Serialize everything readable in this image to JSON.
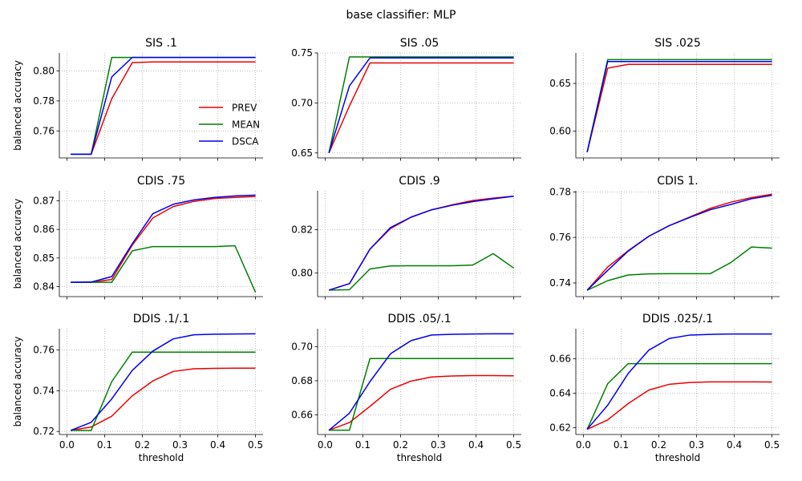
{
  "figure": {
    "suptitle": "base classifier: MLP"
  },
  "colors": {
    "PREV": "#ee0000",
    "MEAN": "#008000",
    "DSCA": "#0000ee",
    "grid": "#b0b0b0"
  },
  "legend": {
    "entries": [
      "PREV",
      "MEAN",
      "DSCA"
    ],
    "placement": "center-right of first panel"
  },
  "chart_data": [
    {
      "type": "line",
      "title": "SIS .1",
      "xlabel": "",
      "ylabel": "balanced accuracy",
      "grid": true,
      "xlim": [
        -0.02,
        0.52
      ],
      "ylim": [
        0.742,
        0.812
      ],
      "yticks": [
        0.76,
        0.78,
        0.8
      ],
      "yticklabels": [
        "0.76",
        "0.78",
        "0.80"
      ],
      "xticks": [],
      "xticklabels": [],
      "x": [
        0.01,
        0.0644,
        0.1189,
        0.1733,
        0.2278,
        0.2822,
        0.3367,
        0.3911,
        0.4456,
        0.5
      ],
      "series": [
        {
          "name": "PREV",
          "values": [
            0.7445,
            0.7445,
            0.7815,
            0.8055,
            0.806,
            0.806,
            0.806,
            0.806,
            0.806,
            0.806
          ]
        },
        {
          "name": "MEAN",
          "values": [
            0.7445,
            0.7445,
            0.809,
            0.809,
            0.809,
            0.809,
            0.809,
            0.809,
            0.809,
            0.809
          ]
        },
        {
          "name": "DSCA",
          "values": [
            0.7445,
            0.7445,
            0.796,
            0.809,
            0.809,
            0.809,
            0.809,
            0.809,
            0.809,
            0.809
          ]
        }
      ]
    },
    {
      "type": "line",
      "title": "SIS .05",
      "xlabel": "",
      "ylabel": "",
      "grid": true,
      "xlim": [
        -0.02,
        0.52
      ],
      "ylim": [
        0.645,
        0.75
      ],
      "yticks": [
        0.65,
        0.7,
        0.75
      ],
      "yticklabels": [
        "0.65",
        "0.70",
        "0.75"
      ],
      "xticks": [],
      "xticklabels": [],
      "x": [
        0.01,
        0.0644,
        0.1189,
        0.1733,
        0.2278,
        0.2822,
        0.3367,
        0.3911,
        0.4456,
        0.5
      ],
      "series": [
        {
          "name": "PREV",
          "values": [
            0.65,
            0.697,
            0.74,
            0.74,
            0.74,
            0.74,
            0.74,
            0.74,
            0.74,
            0.74
          ]
        },
        {
          "name": "MEAN",
          "values": [
            0.65,
            0.746,
            0.746,
            0.746,
            0.746,
            0.746,
            0.746,
            0.746,
            0.746,
            0.746
          ]
        },
        {
          "name": "DSCA",
          "values": [
            0.65,
            0.717,
            0.745,
            0.745,
            0.745,
            0.745,
            0.745,
            0.745,
            0.745,
            0.745
          ]
        }
      ]
    },
    {
      "type": "line",
      "title": "SIS .025",
      "xlabel": "",
      "ylabel": "",
      "grid": true,
      "xlim": [
        -0.02,
        0.52
      ],
      "ylim": [
        0.572,
        0.682
      ],
      "yticks": [
        0.6,
        0.65
      ],
      "yticklabels": [
        "0.60",
        "0.65"
      ],
      "xticks": [],
      "xticklabels": [],
      "x": [
        0.01,
        0.0644,
        0.1189,
        0.1733,
        0.2278,
        0.2822,
        0.3367,
        0.3911,
        0.4456,
        0.5
      ],
      "series": [
        {
          "name": "PREV",
          "values": [
            0.578,
            0.666,
            0.67,
            0.67,
            0.67,
            0.67,
            0.67,
            0.67,
            0.67,
            0.67
          ]
        },
        {
          "name": "MEAN",
          "values": [
            0.578,
            0.675,
            0.675,
            0.675,
            0.675,
            0.675,
            0.675,
            0.675,
            0.675,
            0.675
          ]
        },
        {
          "name": "DSCA",
          "values": [
            0.578,
            0.673,
            0.673,
            0.673,
            0.673,
            0.673,
            0.673,
            0.673,
            0.673,
            0.673
          ]
        }
      ]
    },
    {
      "type": "line",
      "title": "CDIS .75",
      "xlabel": "",
      "ylabel": "balanced accuracy",
      "grid": true,
      "xlim": [
        -0.02,
        0.52
      ],
      "ylim": [
        0.8365,
        0.8735
      ],
      "yticks": [
        0.84,
        0.85,
        0.86,
        0.87
      ],
      "yticklabels": [
        "0.84",
        "0.85",
        "0.86",
        "0.87"
      ],
      "xticks": [],
      "xticklabels": [],
      "x": [
        0.01,
        0.0644,
        0.1189,
        0.1733,
        0.2278,
        0.2822,
        0.3367,
        0.3911,
        0.4456,
        0.5
      ],
      "series": [
        {
          "name": "PREV",
          "values": [
            0.8415,
            0.8415,
            0.8425,
            0.8545,
            0.864,
            0.868,
            0.8698,
            0.8708,
            0.8712,
            0.8715
          ]
        },
        {
          "name": "MEAN",
          "values": [
            0.8415,
            0.8415,
            0.8415,
            0.8525,
            0.854,
            0.854,
            0.854,
            0.854,
            0.8543,
            0.838
          ]
        },
        {
          "name": "DSCA",
          "values": [
            0.8415,
            0.8416,
            0.8435,
            0.855,
            0.8655,
            0.8688,
            0.8703,
            0.8712,
            0.8717,
            0.872
          ]
        }
      ]
    },
    {
      "type": "line",
      "title": "CDIS .9",
      "xlabel": "",
      "ylabel": "",
      "grid": true,
      "xlim": [
        -0.02,
        0.52
      ],
      "ylim": [
        0.789,
        0.838
      ],
      "yticks": [
        0.8,
        0.82
      ],
      "yticklabels": [
        "0.80",
        "0.82"
      ],
      "xticks": [],
      "xticklabels": [],
      "x": [
        0.01,
        0.0644,
        0.1189,
        0.1733,
        0.2278,
        0.2822,
        0.3367,
        0.3911,
        0.4456,
        0.5
      ],
      "series": [
        {
          "name": "PREV",
          "values": [
            0.792,
            0.795,
            0.811,
            0.8205,
            0.8258,
            0.8292,
            0.8315,
            0.8335,
            0.8346,
            0.8355
          ]
        },
        {
          "name": "MEAN",
          "values": [
            0.792,
            0.7922,
            0.8018,
            0.8032,
            0.8033,
            0.8033,
            0.8033,
            0.8036,
            0.8089,
            0.8022
          ]
        },
        {
          "name": "DSCA",
          "values": [
            0.792,
            0.795,
            0.811,
            0.821,
            0.8258,
            0.8292,
            0.8313,
            0.833,
            0.8343,
            0.8355
          ]
        }
      ]
    },
    {
      "type": "line",
      "title": "CDIS 1.",
      "xlabel": "",
      "ylabel": "",
      "grid": true,
      "xlim": [
        -0.02,
        0.52
      ],
      "ylim": [
        0.734,
        0.7805
      ],
      "yticks": [
        0.74,
        0.76,
        0.78
      ],
      "yticklabels": [
        "0.74",
        "0.76",
        "0.78"
      ],
      "xticks": [],
      "xticklabels": [],
      "x": [
        0.01,
        0.0644,
        0.1189,
        0.1733,
        0.2278,
        0.2822,
        0.3367,
        0.3911,
        0.4456,
        0.5
      ],
      "series": [
        {
          "name": "PREV",
          "values": [
            0.7368,
            0.747,
            0.7542,
            0.7605,
            0.7652,
            0.769,
            0.7728,
            0.7755,
            0.7775,
            0.779
          ]
        },
        {
          "name": "MEAN",
          "values": [
            0.7368,
            0.741,
            0.7435,
            0.744,
            0.7441,
            0.7441,
            0.7441,
            0.749,
            0.7558,
            0.7553
          ]
        },
        {
          "name": "DSCA",
          "values": [
            0.7368,
            0.7455,
            0.754,
            0.7605,
            0.7652,
            0.7688,
            0.7722,
            0.7745,
            0.777,
            0.7785
          ]
        }
      ]
    },
    {
      "type": "line",
      "title": "DDIS .1/.1",
      "xlabel": "threshold",
      "ylabel": "balanced accuracy",
      "grid": true,
      "xlim": [
        -0.02,
        0.52
      ],
      "ylim": [
        0.7185,
        0.7705
      ],
      "yticks": [
        0.72,
        0.74,
        0.76
      ],
      "yticklabels": [
        "0.72",
        "0.74",
        "0.76"
      ],
      "xticks": [
        0.0,
        0.1,
        0.2,
        0.3,
        0.4,
        0.5
      ],
      "xticklabels": [
        "0.0",
        "0.1",
        "0.2",
        "0.3",
        "0.4",
        "0.5"
      ],
      "x": [
        0.01,
        0.0644,
        0.1189,
        0.1733,
        0.2278,
        0.2822,
        0.3367,
        0.3911,
        0.4456,
        0.5
      ],
      "series": [
        {
          "name": "PREV",
          "values": [
            0.7205,
            0.7222,
            0.7275,
            0.7375,
            0.7448,
            0.7495,
            0.7508,
            0.751,
            0.7511,
            0.7511
          ]
        },
        {
          "name": "MEAN",
          "values": [
            0.7205,
            0.7205,
            0.7445,
            0.759,
            0.759,
            0.759,
            0.759,
            0.759,
            0.759,
            0.759
          ]
        },
        {
          "name": "DSCA",
          "values": [
            0.7205,
            0.7245,
            0.736,
            0.75,
            0.7595,
            0.7655,
            0.7675,
            0.7678,
            0.7679,
            0.768
          ]
        }
      ]
    },
    {
      "type": "line",
      "title": "DDIS .05/.1",
      "xlabel": "threshold",
      "ylabel": "",
      "grid": true,
      "xlim": [
        -0.02,
        0.52
      ],
      "ylim": [
        0.6485,
        0.7105
      ],
      "yticks": [
        0.66,
        0.68,
        0.7
      ],
      "yticklabels": [
        "0.66",
        "0.68",
        "0.70"
      ],
      "xticks": [
        0.0,
        0.1,
        0.2,
        0.3,
        0.4,
        0.5
      ],
      "xticklabels": [
        "0.0",
        "0.1",
        "0.2",
        "0.3",
        "0.4",
        "0.5"
      ],
      "x": [
        0.01,
        0.0644,
        0.1189,
        0.1733,
        0.2278,
        0.2822,
        0.3367,
        0.3911,
        0.4456,
        0.5
      ],
      "series": [
        {
          "name": "PREV",
          "values": [
            0.651,
            0.6555,
            0.665,
            0.675,
            0.6798,
            0.6822,
            0.6828,
            0.683,
            0.683,
            0.6829
          ]
        },
        {
          "name": "MEAN",
          "values": [
            0.651,
            0.651,
            0.693,
            0.693,
            0.693,
            0.693,
            0.693,
            0.693,
            0.693,
            0.693
          ]
        },
        {
          "name": "DSCA",
          "values": [
            0.651,
            0.661,
            0.6795,
            0.6958,
            0.7035,
            0.7068,
            0.7072,
            0.7074,
            0.7075,
            0.7075
          ]
        }
      ]
    },
    {
      "type": "line",
      "title": "DDIS .025/.1",
      "xlabel": "threshold",
      "ylabel": "",
      "grid": true,
      "xlim": [
        -0.02,
        0.52
      ],
      "ylim": [
        0.616,
        0.6775
      ],
      "yticks": [
        0.62,
        0.64,
        0.66
      ],
      "yticklabels": [
        "0.62",
        "0.64",
        "0.66"
      ],
      "xticks": [
        0.0,
        0.1,
        0.2,
        0.3,
        0.4,
        0.5
      ],
      "xticklabels": [
        "0.0",
        "0.1",
        "0.2",
        "0.3",
        "0.4",
        "0.5"
      ],
      "x": [
        0.01,
        0.0644,
        0.1189,
        0.1733,
        0.2278,
        0.2822,
        0.3367,
        0.3911,
        0.4456,
        0.5
      ],
      "series": [
        {
          "name": "PREV",
          "values": [
            0.619,
            0.6245,
            0.634,
            0.6418,
            0.6452,
            0.6462,
            0.6466,
            0.6466,
            0.6466,
            0.6465
          ]
        },
        {
          "name": "MEAN",
          "values": [
            0.619,
            0.6455,
            0.6572,
            0.6572,
            0.6572,
            0.6572,
            0.6572,
            0.6572,
            0.6572,
            0.6572
          ]
        },
        {
          "name": "DSCA",
          "values": [
            0.619,
            0.633,
            0.6515,
            0.665,
            0.6718,
            0.6738,
            0.6742,
            0.6744,
            0.6744,
            0.6744
          ]
        }
      ]
    }
  ]
}
